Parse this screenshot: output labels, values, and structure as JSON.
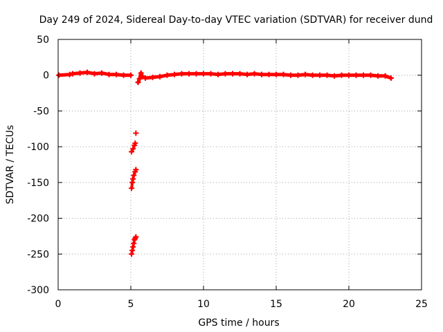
{
  "chart_data": {
    "type": "scatter",
    "title": "Day 249 of 2024, Sidereal Day-to-day VTEC variation (SDTVAR) for receiver dund",
    "xlabel": "GPS time / hours",
    "ylabel": "SDTVAR / TECUs",
    "xlim": [
      0,
      25
    ],
    "ylim": [
      -300,
      50
    ],
    "xticks": [
      "0",
      "5",
      "10",
      "15",
      "20",
      "25"
    ],
    "yticks": [
      "50",
      "0",
      "-50",
      "-100",
      "-150",
      "-200",
      "-250",
      "-300"
    ],
    "grid": true,
    "marker": "+",
    "color": "#ff0000",
    "series": [
      {
        "name": "SDTVAR",
        "x": [
          0.05,
          0.8,
          1.0,
          1.5,
          2.0,
          2.5,
          3.0,
          3.5,
          4.0,
          4.5,
          5.0,
          5.5,
          5.6,
          5.7,
          5.8,
          6.0,
          6.5,
          7.0,
          7.5,
          8.0,
          8.5,
          9.0,
          9.5,
          10.0,
          10.5,
          11.0,
          11.5,
          12.0,
          12.5,
          13.0,
          13.5,
          14.0,
          14.5,
          15.0,
          15.5,
          16.0,
          16.5,
          17.0,
          17.5,
          18.0,
          18.5,
          19.0,
          19.5,
          20.0,
          20.5,
          21.0,
          21.5,
          22.0,
          22.5,
          22.9,
          5.35,
          5.05,
          5.15,
          5.25,
          5.3,
          5.05,
          5.1,
          5.15,
          5.2,
          5.3,
          5.35,
          5.05,
          5.1,
          5.15,
          5.2,
          5.25,
          5.3,
          5.35
        ],
        "y": [
          0,
          1,
          2,
          3,
          4,
          2,
          3,
          1,
          1,
          0,
          0,
          -10,
          -5,
          3,
          -2,
          -4,
          -3,
          -2,
          0,
          1,
          2,
          2,
          2,
          2,
          2,
          1,
          2,
          2,
          2,
          1,
          2,
          1,
          1,
          1,
          1,
          0,
          0,
          1,
          0,
          0,
          0,
          -1,
          0,
          0,
          0,
          0,
          0,
          -1,
          -1,
          -4,
          -81,
          -107,
          -103,
          -98,
          -95,
          -158,
          -150,
          -145,
          -140,
          -135,
          -132,
          -250,
          -245,
          -240,
          -235,
          -230,
          -228,
          -226
        ]
      }
    ]
  }
}
